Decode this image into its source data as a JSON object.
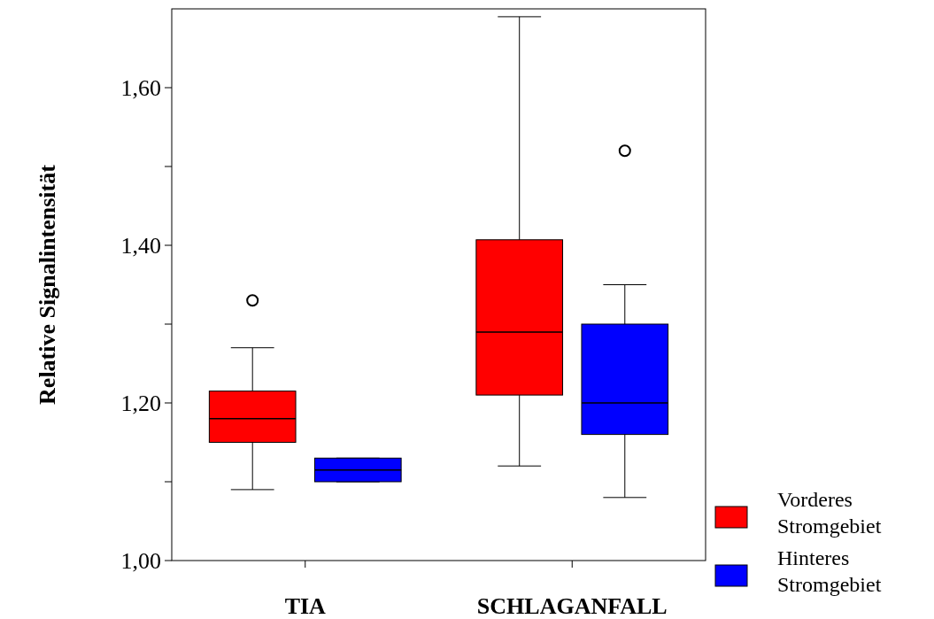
{
  "chart_data": {
    "type": "box",
    "ylabel": "Relative Signalintensität",
    "categories": [
      "TIA",
      "SCHLAGANFALL"
    ],
    "ylim": [
      1.0,
      1.7
    ],
    "yticks": [
      {
        "value": 1.0,
        "label": "1,00"
      },
      {
        "value": 1.1,
        "label": null
      },
      {
        "value": 1.2,
        "label": "1,20"
      },
      {
        "value": 1.3,
        "label": null
      },
      {
        "value": 1.4,
        "label": "1,40"
      },
      {
        "value": 1.5,
        "label": null
      },
      {
        "value": 1.6,
        "label": "1,60"
      }
    ],
    "legend": "bottom right",
    "series": [
      {
        "name": "Vorderes Stromgebiet",
        "color": "#ff0000",
        "boxes": [
          {
            "low": 1.09,
            "q1": 1.15,
            "median": 1.18,
            "q3": 1.215,
            "high": 1.27,
            "outliers": [
              1.33
            ]
          },
          {
            "low": 1.12,
            "q1": 1.21,
            "median": 1.29,
            "q3": 1.407,
            "high": 1.69
          }
        ]
      },
      {
        "name": "Hinteres Stromgebiet",
        "color": "#0000ff",
        "boxes": [
          {
            "low": 1.1,
            "q1": 1.1,
            "median": 1.115,
            "q3": 1.13,
            "high": 1.13
          },
          {
            "low": 1.08,
            "q1": 1.16,
            "median": 1.2,
            "q3": 1.3,
            "high": 1.35,
            "outliers": [
              1.52
            ]
          }
        ]
      }
    ]
  }
}
